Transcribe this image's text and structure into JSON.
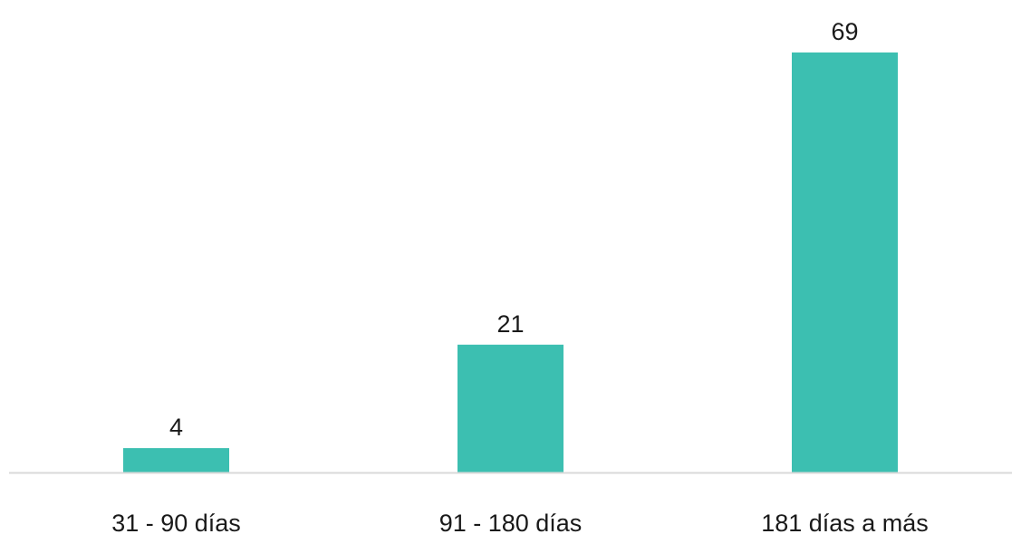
{
  "chart_data": {
    "type": "bar",
    "categories": [
      "31 - 90 días",
      "91 - 180 días",
      "181 días a más"
    ],
    "values": [
      4,
      21,
      69
    ],
    "title": "",
    "xlabel": "",
    "ylabel": "",
    "ylim": [
      0,
      69
    ],
    "grid": false,
    "legend": "none",
    "show_data_labels": true,
    "bar_color": "#3cbfb1",
    "axis_color": "#d9d9d9"
  }
}
